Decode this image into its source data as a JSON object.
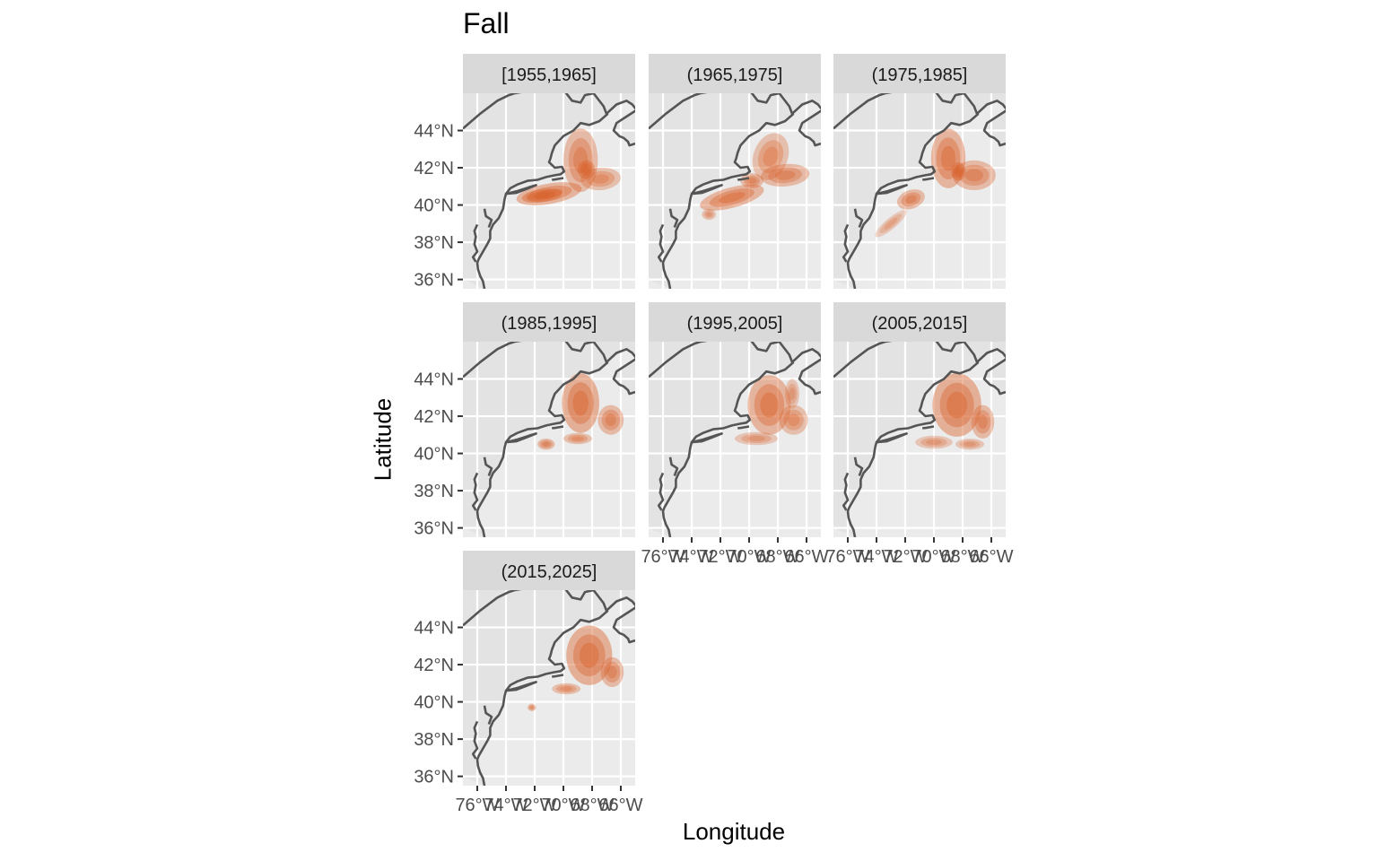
{
  "plot": {
    "title": "Fall",
    "xlabel": "Longitude",
    "ylabel": "Latitude"
  },
  "colors": {
    "panel_bg": "#ebebeb",
    "land": "#e3e3e3",
    "grid": "#ffffff",
    "strip_bg": "#d9d9d9",
    "coast": "#555555",
    "density": "#d9622b"
  },
  "icons": [
    "coastline-map"
  ],
  "chart_data": {
    "type": "faceted-density-map",
    "facet_variable": "decade",
    "y_ticks": [
      "44°N",
      "42°N",
      "40°N",
      "38°N",
      "36°N"
    ],
    "x_ticks": [
      "76°W",
      "74°W",
      "72°W",
      "70°W",
      "68°W",
      "66°W"
    ],
    "ylim": [
      35.5,
      46
    ],
    "xlim": [
      -77,
      -65
    ],
    "grid": true,
    "facets": [
      {
        "label": "[1955,1965]",
        "row": 0,
        "col": 0,
        "show_y": true,
        "show_x": false,
        "blobs": [
          {
            "lon": -71.0,
            "lat": 40.6,
            "rx": 2.3,
            "ry": 0.55,
            "rot": -10,
            "op": 0.5
          },
          {
            "lon": -68.8,
            "lat": 42.4,
            "rx": 1.2,
            "ry": 1.7,
            "rot": 0,
            "op": 0.45
          },
          {
            "lon": -67.4,
            "lat": 41.4,
            "rx": 1.4,
            "ry": 0.6,
            "rot": -5,
            "op": 0.4
          },
          {
            "lon": -71.5,
            "lat": 40.5,
            "rx": 1.4,
            "ry": 0.35,
            "rot": -8,
            "op": 0.55
          },
          {
            "lon": -68.4,
            "lat": 41.9,
            "rx": 0.6,
            "ry": 0.5,
            "rot": 0,
            "op": 0.55
          }
        ]
      },
      {
        "label": "(1965,1975]",
        "row": 0,
        "col": 1,
        "show_y": false,
        "show_x": false,
        "blobs": [
          {
            "lon": -71.2,
            "lat": 40.4,
            "rx": 2.3,
            "ry": 0.55,
            "rot": -15,
            "op": 0.5
          },
          {
            "lon": -68.5,
            "lat": 42.6,
            "rx": 1.2,
            "ry": 1.3,
            "rot": 20,
            "op": 0.4
          },
          {
            "lon": -67.5,
            "lat": 41.6,
            "rx": 1.7,
            "ry": 0.6,
            "rot": -5,
            "op": 0.45
          },
          {
            "lon": -69.8,
            "lat": 41.3,
            "rx": 0.8,
            "ry": 0.4,
            "rot": 0,
            "op": 0.45
          },
          {
            "lon": -72.8,
            "lat": 39.5,
            "rx": 0.5,
            "ry": 0.3,
            "rot": 0,
            "op": 0.35
          }
        ]
      },
      {
        "label": "(1975,1985]",
        "row": 0,
        "col": 2,
        "show_y": false,
        "show_x": false,
        "blobs": [
          {
            "lon": -69.0,
            "lat": 42.5,
            "rx": 1.2,
            "ry": 1.6,
            "rot": 0,
            "op": 0.5
          },
          {
            "lon": -67.2,
            "lat": 41.6,
            "rx": 1.5,
            "ry": 0.8,
            "rot": 0,
            "op": 0.45
          },
          {
            "lon": -71.6,
            "lat": 40.3,
            "rx": 1.0,
            "ry": 0.5,
            "rot": -20,
            "op": 0.45
          },
          {
            "lon": -73.0,
            "lat": 39.0,
            "rx": 1.4,
            "ry": 0.3,
            "rot": -40,
            "op": 0.3
          },
          {
            "lon": -68.3,
            "lat": 41.8,
            "rx": 0.5,
            "ry": 0.5,
            "rot": 0,
            "op": 0.55
          }
        ]
      },
      {
        "label": "(1985,1995]",
        "row": 1,
        "col": 0,
        "show_y": true,
        "show_x": false,
        "blobs": [
          {
            "lon": -68.8,
            "lat": 42.7,
            "rx": 1.3,
            "ry": 1.6,
            "rot": 0,
            "op": 0.55
          },
          {
            "lon": -66.7,
            "lat": 41.8,
            "rx": 0.9,
            "ry": 0.8,
            "rot": 0,
            "op": 0.45
          },
          {
            "lon": -71.2,
            "lat": 40.5,
            "rx": 0.6,
            "ry": 0.3,
            "rot": 0,
            "op": 0.45
          },
          {
            "lon": -69.0,
            "lat": 40.8,
            "rx": 1.0,
            "ry": 0.3,
            "rot": 0,
            "op": 0.4
          }
        ]
      },
      {
        "label": "(1995,2005]",
        "row": 1,
        "col": 1,
        "show_y": false,
        "show_x": true,
        "blobs": [
          {
            "lon": -68.6,
            "lat": 42.6,
            "rx": 1.5,
            "ry": 1.6,
            "rot": 0,
            "op": 0.5
          },
          {
            "lon": -66.9,
            "lat": 41.8,
            "rx": 1.0,
            "ry": 0.8,
            "rot": 0,
            "op": 0.4
          },
          {
            "lon": -69.5,
            "lat": 40.8,
            "rx": 1.5,
            "ry": 0.35,
            "rot": 0,
            "op": 0.35
          },
          {
            "lon": -67.0,
            "lat": 43.2,
            "rx": 0.5,
            "ry": 0.8,
            "rot": 0,
            "op": 0.35
          }
        ]
      },
      {
        "label": "(2005,2015]",
        "row": 1,
        "col": 2,
        "show_y": false,
        "show_x": true,
        "blobs": [
          {
            "lon": -68.4,
            "lat": 42.6,
            "rx": 1.7,
            "ry": 1.7,
            "rot": 0,
            "op": 0.55
          },
          {
            "lon": -66.6,
            "lat": 41.7,
            "rx": 0.8,
            "ry": 0.9,
            "rot": 0,
            "op": 0.45
          },
          {
            "lon": -70.0,
            "lat": 40.6,
            "rx": 1.3,
            "ry": 0.35,
            "rot": 0,
            "op": 0.35
          },
          {
            "lon": -67.5,
            "lat": 40.5,
            "rx": 1.0,
            "ry": 0.3,
            "rot": 0,
            "op": 0.35
          }
        ]
      },
      {
        "label": "(2015,2025]",
        "row": 2,
        "col": 0,
        "show_y": true,
        "show_x": true,
        "blobs": [
          {
            "lon": -68.2,
            "lat": 42.5,
            "rx": 1.6,
            "ry": 1.6,
            "rot": 0,
            "op": 0.55
          },
          {
            "lon": -66.6,
            "lat": 41.6,
            "rx": 0.8,
            "ry": 0.8,
            "rot": 0,
            "op": 0.45
          },
          {
            "lon": -69.8,
            "lat": 40.7,
            "rx": 1.0,
            "ry": 0.3,
            "rot": 0,
            "op": 0.4
          },
          {
            "lon": -72.2,
            "lat": 39.7,
            "rx": 0.3,
            "ry": 0.2,
            "rot": 0,
            "op": 0.4
          }
        ]
      }
    ]
  }
}
